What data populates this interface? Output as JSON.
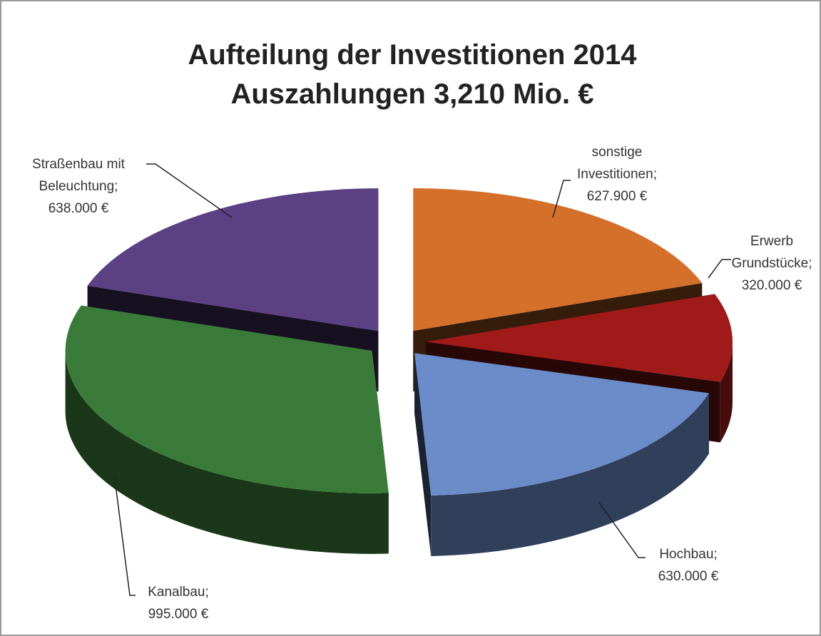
{
  "chart_data": {
    "type": "pie",
    "title": "Aufteilung der Investitionen 2014",
    "subtitle": "Auszahlungen 3,210 Mio. €",
    "categories": [
      "sonstige Investitionen;",
      "Erwerb Grundstücke;",
      "Hochbau;",
      "Kanalbau;",
      "Straßenbau mit Beleuchtung;"
    ],
    "values": [
      627900,
      320000,
      630000,
      995000,
      638000
    ],
    "value_labels": [
      "627.900 €",
      "320.000 €",
      "630.000 €",
      "995.000 €",
      "638.000 €"
    ],
    "colors": [
      "#d4702a",
      "#a11a1a",
      "#6b8cc9",
      "#3a7b3a",
      "#5b4083"
    ]
  }
}
